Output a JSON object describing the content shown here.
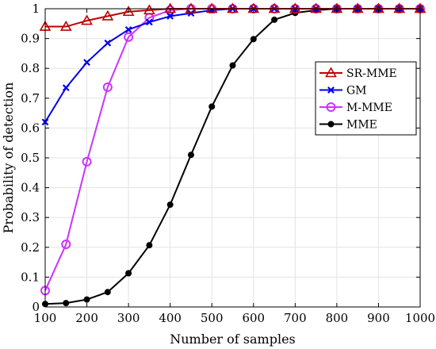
{
  "chart_data": {
    "type": "line",
    "xlabel": "Number of samples",
    "ylabel": "Probability of detection",
    "xlim": [
      100,
      1000
    ],
    "ylim": [
      0,
      1
    ],
    "xticks": [
      "100",
      "200",
      "300",
      "400",
      "500",
      "600",
      "700",
      "800",
      "900",
      "1000"
    ],
    "yticks": [
      "0",
      "0.1",
      "0.2",
      "0.3",
      "0.4",
      "0.5",
      "0.6",
      "0.7",
      "0.8",
      "0.9",
      "1"
    ],
    "grid": true,
    "legend_position": "top-right",
    "x": [
      100,
      150,
      200,
      250,
      300,
      350,
      400,
      450,
      500,
      550,
      600,
      650,
      700,
      750,
      800,
      850,
      900,
      950,
      1000
    ],
    "series": [
      {
        "name": "SR-MME",
        "color": "#c00000",
        "marker": "triangle",
        "values": [
          0.94,
          0.94,
          0.96,
          0.975,
          0.99,
          0.995,
          1.0,
          1.0,
          1.0,
          1.0,
          1.0,
          1.0,
          1.0,
          1.0,
          1.0,
          1.0,
          1.0,
          1.0,
          1.0
        ]
      },
      {
        "name": "GM",
        "color": "#0000ee",
        "marker": "x",
        "values": [
          0.62,
          0.735,
          0.82,
          0.885,
          0.93,
          0.955,
          0.975,
          0.985,
          0.995,
          1.0,
          1.0,
          1.0,
          1.0,
          1.0,
          1.0,
          1.0,
          1.0,
          1.0,
          1.0
        ]
      },
      {
        "name": "M-MME",
        "color": "#cc33ff",
        "marker": "circle",
        "values": [
          0.055,
          0.21,
          0.487,
          0.737,
          0.905,
          0.97,
          0.995,
          1.0,
          1.0,
          1.0,
          1.0,
          1.0,
          1.0,
          1.0,
          1.0,
          1.0,
          1.0,
          1.0,
          1.0
        ]
      },
      {
        "name": "MME",
        "color": "#000000",
        "marker": "filled-circle",
        "values": [
          0.01,
          0.013,
          0.025,
          0.05,
          0.113,
          0.207,
          0.343,
          0.51,
          0.672,
          0.81,
          0.898,
          0.963,
          0.986,
          0.995,
          1.0,
          1.0,
          1.0,
          1.0,
          1.0
        ]
      }
    ]
  }
}
